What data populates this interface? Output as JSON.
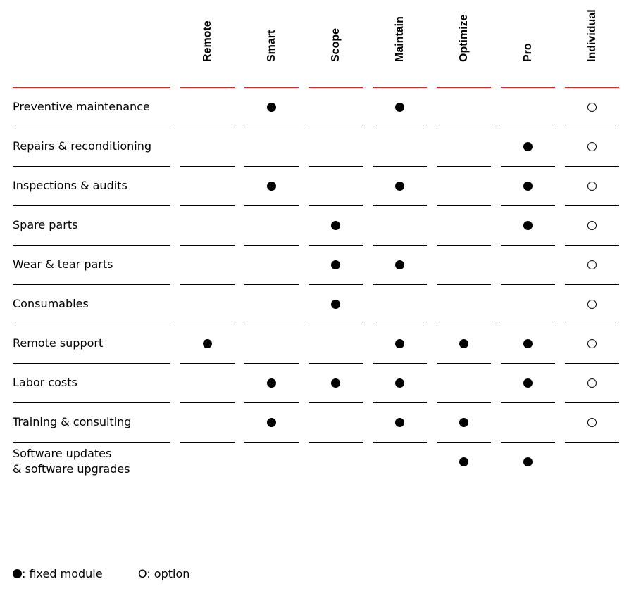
{
  "columns": [
    "Remote",
    "Smart",
    "Scope",
    "Maintain",
    "Optimize",
    "Pro",
    "Individual"
  ],
  "rows": [
    {
      "label": "Preventive maintenance",
      "cells": [
        "",
        "fixed",
        "",
        "fixed",
        "",
        "",
        "option"
      ]
    },
    {
      "label": "Repairs & reconditioning",
      "cells": [
        "",
        "",
        "",
        "",
        "",
        "fixed",
        "option"
      ]
    },
    {
      "label": "Inspections & audits",
      "cells": [
        "",
        "fixed",
        "",
        "fixed",
        "",
        "fixed",
        "option"
      ]
    },
    {
      "label": "Spare parts",
      "cells": [
        "",
        "",
        "fixed",
        "",
        "",
        "fixed",
        "option"
      ]
    },
    {
      "label": "Wear & tear parts",
      "cells": [
        "",
        "",
        "fixed",
        "fixed",
        "",
        "",
        "option"
      ]
    },
    {
      "label": "Consumables",
      "cells": [
        "",
        "",
        "fixed",
        "",
        "",
        "",
        "option"
      ]
    },
    {
      "label": "Remote support",
      "cells": [
        "fixed",
        "",
        "",
        "fixed",
        "fixed",
        "fixed",
        "option"
      ]
    },
    {
      "label": "Labor costs",
      "cells": [
        "",
        "fixed",
        "fixed",
        "fixed",
        "",
        "fixed",
        "option"
      ]
    },
    {
      "label": "Training & consulting",
      "cells": [
        "",
        "fixed",
        "",
        "fixed",
        "fixed",
        "",
        "option"
      ]
    },
    {
      "label": "Software updates\n& software upgrades",
      "cells": [
        "",
        "",
        "",
        "",
        "fixed",
        "fixed",
        ""
      ]
    }
  ],
  "legend": {
    "fixed_label": ": fixed module",
    "option_label": "O: option"
  },
  "colors": {
    "header_rule": "#d9262a",
    "row_rule": "#000000",
    "text": "#000000"
  }
}
